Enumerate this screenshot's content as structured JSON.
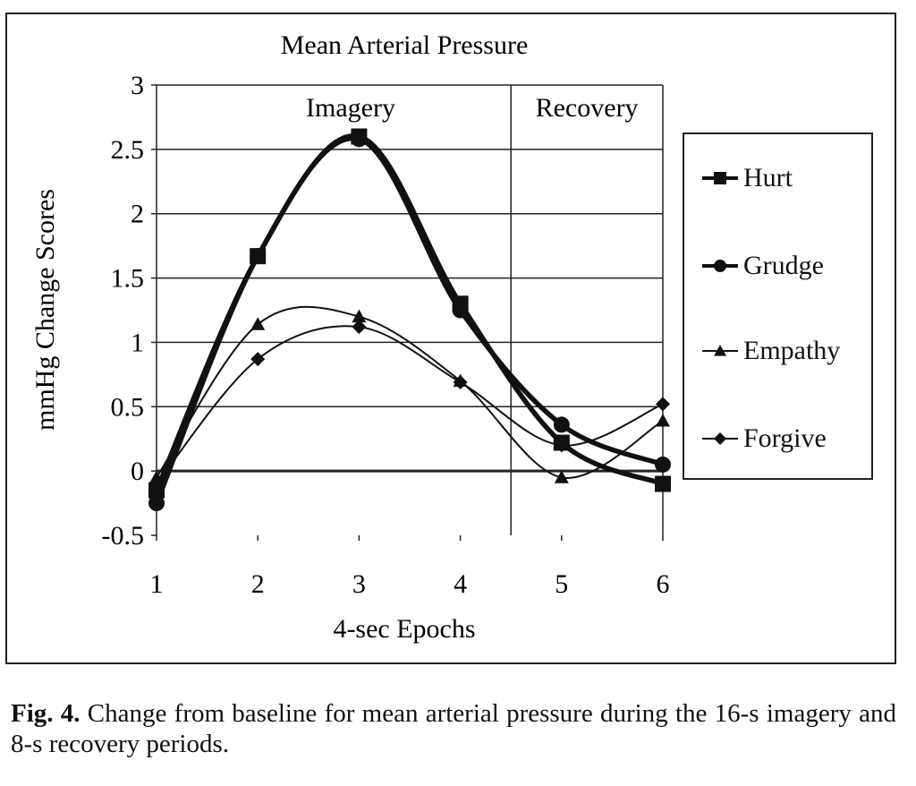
{
  "chart_data": {
    "type": "line",
    "title": "Mean Arterial Pressure",
    "xlabel": "4-sec Epochs",
    "ylabel": "mmHg Change Scores",
    "x": [
      1,
      2,
      3,
      4,
      5,
      6
    ],
    "xticks": [
      "1",
      "2",
      "3",
      "4",
      "5",
      "6"
    ],
    "ylim": [
      -0.5,
      3
    ],
    "yticks": [
      "3",
      "2.5",
      "2",
      "1.5",
      "1",
      "0.5",
      "0",
      "-0.5"
    ],
    "ytick_values": [
      3,
      2.5,
      2,
      1.5,
      1,
      0.5,
      0,
      -0.5
    ],
    "grid": true,
    "smoothed": true,
    "legend_position": "right",
    "annotations": [
      {
        "text": "Imagery",
        "x_range": [
          1,
          4.5
        ]
      },
      {
        "text": "Recovery",
        "x_range": [
          4.5,
          6
        ]
      }
    ],
    "divider_x": 4.5,
    "series": [
      {
        "name": "Hurt",
        "marker": "square",
        "weight": "heavy",
        "values": [
          -0.15,
          1.67,
          2.6,
          1.3,
          0.22,
          -0.1
        ]
      },
      {
        "name": "Grudge",
        "marker": "circle",
        "weight": "heavy",
        "values": [
          -0.25,
          1.67,
          2.58,
          1.25,
          0.36,
          0.05
        ]
      },
      {
        "name": "Empathy",
        "marker": "triangle",
        "weight": "light",
        "values": [
          -0.05,
          1.14,
          1.2,
          0.7,
          -0.05,
          0.39
        ]
      },
      {
        "name": "Forgive",
        "marker": "diamond",
        "weight": "light",
        "values": [
          -0.1,
          0.87,
          1.12,
          0.69,
          0.2,
          0.52
        ]
      }
    ]
  },
  "caption": {
    "label": "Fig. 4.",
    "text": " Change from baseline for mean arterial pressure during the 16-s imagery and 8-s recovery periods."
  }
}
